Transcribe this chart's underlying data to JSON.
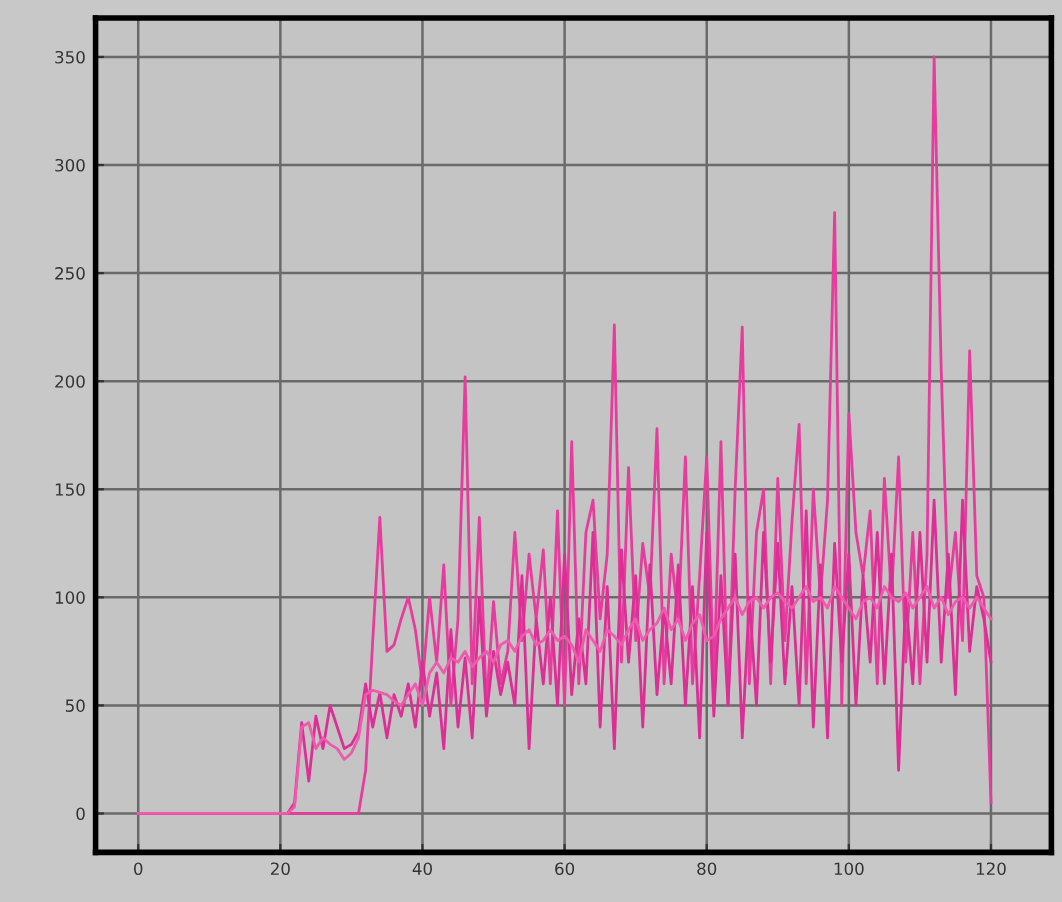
{
  "chart_data": {
    "type": "line",
    "xlim": [
      -6,
      128.5
    ],
    "ylim": [
      -18,
      368
    ],
    "xticks": [
      0,
      20,
      40,
      60,
      80,
      100,
      120
    ],
    "yticks": [
      0,
      50,
      100,
      150,
      200,
      250,
      300,
      350
    ],
    "grid": true,
    "marker": "none",
    "line_style": "solid",
    "series": [
      {
        "color": "#e63c9e",
        "x": [
          0,
          31,
          32,
          33,
          34,
          35,
          36,
          37,
          38,
          39,
          40,
          41,
          42,
          43,
          44,
          45,
          46,
          47,
          48,
          49,
          50,
          51,
          52,
          53,
          54,
          55,
          56,
          57,
          58,
          59,
          60,
          61,
          62,
          63,
          64,
          65,
          66,
          67,
          68,
          69,
          70,
          71,
          72,
          73,
          74,
          75,
          76,
          77,
          78,
          79,
          80,
          81,
          82,
          83,
          84,
          85,
          86,
          87,
          88,
          89,
          90,
          91,
          92,
          93,
          94,
          95,
          96,
          97,
          98,
          99,
          100,
          101,
          102,
          103,
          104,
          105,
          106,
          107,
          108,
          109,
          110,
          111,
          112,
          113,
          114,
          115,
          116,
          117,
          118,
          119,
          120
        ],
        "values": [
          0,
          0,
          20,
          80,
          137,
          75,
          78,
          90,
          100,
          85,
          60,
          100,
          70,
          115,
          50,
          90,
          202,
          60,
          137,
          50,
          98,
          60,
          75,
          130,
          80,
          120,
          90,
          122,
          60,
          140,
          50,
          172,
          60,
          130,
          145,
          90,
          120,
          226,
          70,
          160,
          80,
          125,
          100,
          178,
          60,
          120,
          90,
          165,
          60,
          110,
          165,
          60,
          172,
          50,
          150,
          225,
          60,
          130,
          150,
          60,
          155,
          80,
          135,
          180,
          60,
          150,
          100,
          145,
          278,
          50,
          185,
          130,
          110,
          140,
          60,
          155,
          100,
          165,
          70,
          130,
          60,
          120,
          350,
          205,
          100,
          130,
          80,
          214,
          110,
          100,
          5
        ]
      },
      {
        "color": "#dc2f96",
        "x": [
          0,
          21,
          22,
          23,
          24,
          25,
          26,
          27,
          28,
          29,
          30,
          31,
          32,
          33,
          34,
          35,
          36,
          37,
          38,
          39,
          40,
          41,
          42,
          43,
          44,
          45,
          46,
          47,
          48,
          49,
          50,
          51,
          52,
          53,
          54,
          55,
          56,
          57,
          58,
          59,
          60,
          61,
          62,
          63,
          64,
          65,
          66,
          67,
          68,
          69,
          70,
          71,
          72,
          73,
          74,
          75,
          76,
          77,
          78,
          79,
          80,
          81,
          82,
          83,
          84,
          85,
          86,
          87,
          88,
          89,
          90,
          91,
          92,
          93,
          94,
          95,
          96,
          97,
          98,
          99,
          100,
          101,
          102,
          103,
          104,
          105,
          106,
          107,
          108,
          109,
          110,
          111,
          112,
          113,
          114,
          115,
          116,
          117,
          118,
          119,
          120
        ],
        "values": [
          0,
          0,
          5,
          42,
          15,
          45,
          30,
          50,
          40,
          30,
          32,
          38,
          60,
          40,
          56,
          35,
          55,
          45,
          60,
          40,
          70,
          45,
          65,
          30,
          85,
          40,
          72,
          35,
          100,
          45,
          75,
          55,
          70,
          50,
          110,
          30,
          90,
          60,
          100,
          50,
          120,
          55,
          90,
          60,
          130,
          40,
          105,
          30,
          122,
          70,
          110,
          40,
          115,
          55,
          95,
          60,
          115,
          50,
          105,
          35,
          130,
          45,
          110,
          50,
          120,
          35,
          100,
          50,
          130,
          70,
          125,
          60,
          105,
          50,
          140,
          40,
          115,
          35,
          125,
          70,
          120,
          50,
          110,
          70,
          130,
          60,
          120,
          20,
          100,
          60,
          130,
          70,
          145,
          70,
          120,
          55,
          145,
          75,
          105,
          90,
          70
        ]
      },
      {
        "color": "#ee5aae",
        "x": [
          0,
          21,
          22,
          23,
          24,
          25,
          26,
          27,
          28,
          29,
          30,
          31,
          32,
          33,
          34,
          35,
          36,
          37,
          38,
          39,
          40,
          41,
          42,
          43,
          44,
          45,
          46,
          47,
          48,
          49,
          50,
          51,
          52,
          53,
          54,
          55,
          56,
          57,
          58,
          59,
          60,
          61,
          62,
          63,
          64,
          65,
          66,
          67,
          68,
          69,
          70,
          71,
          72,
          73,
          74,
          75,
          76,
          77,
          78,
          79,
          80,
          81,
          82,
          83,
          84,
          85,
          86,
          87,
          88,
          89,
          90,
          91,
          92,
          93,
          94,
          95,
          96,
          97,
          98,
          99,
          100,
          101,
          102,
          103,
          104,
          105,
          106,
          107,
          108,
          109,
          110,
          111,
          112,
          113,
          114,
          115,
          116,
          117,
          118,
          119,
          120
        ],
        "values": [
          0,
          0,
          3,
          40,
          42,
          30,
          35,
          32,
          30,
          25,
          28,
          35,
          55,
          57,
          56,
          55,
          52,
          50,
          55,
          60,
          50,
          65,
          70,
          65,
          72,
          70,
          75,
          68,
          72,
          75,
          70,
          78,
          80,
          75,
          82,
          85,
          78,
          80,
          85,
          80,
          82,
          78,
          70,
          85,
          80,
          75,
          85,
          82,
          78,
          85,
          90,
          80,
          85,
          88,
          95,
          85,
          90,
          80,
          88,
          92,
          80,
          82,
          90,
          95,
          100,
          92,
          98,
          100,
          95,
          100,
          102,
          98,
          95,
          100,
          105,
          98,
          100,
          95,
          105,
          100,
          95,
          90,
          98,
          100,
          95,
          105,
          100,
          98,
          102,
          95,
          100,
          105,
          95,
          100,
          92,
          98,
          100,
          95,
          100,
          95,
          90
        ]
      }
    ]
  }
}
